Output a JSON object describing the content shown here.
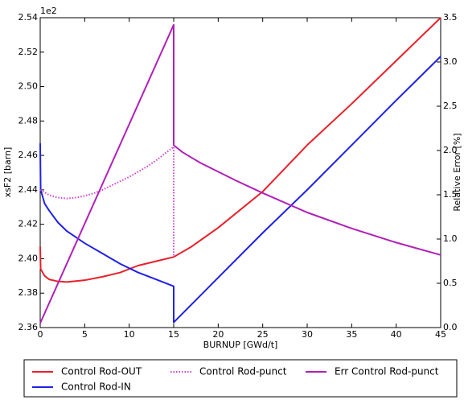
{
  "chart_data": {
    "type": "line",
    "xlabel": "BURNUP [GWd/t]",
    "ylabel": "xsF2 [barn]",
    "y2label": "Relative Error [%]",
    "y_offset_label": "1e2",
    "xlim": [
      0,
      45
    ],
    "xticks": [
      0,
      5,
      10,
      15,
      20,
      25,
      30,
      35,
      40,
      45
    ],
    "ylim": [
      2.36,
      2.54
    ],
    "yticks": [
      2.36,
      2.38,
      {
        "value": 2.4,
        "label": "2.40"
      },
      2.42,
      2.44,
      2.46,
      2.48,
      {
        "value": 2.5,
        "label": "2.50"
      },
      2.52,
      2.54
    ],
    "y2lim": [
      0,
      3.5
    ],
    "y2ticks": [
      {
        "value": 0,
        "label": "0.0"
      },
      0.5,
      {
        "value": 1,
        "label": "1.0"
      },
      1.5,
      {
        "value": 2,
        "label": "2.0"
      },
      2.5,
      {
        "value": 3,
        "label": "3.0"
      },
      3.5
    ],
    "grid": false,
    "legend": "below",
    "series": [
      {
        "name": "Control Rod-OUT",
        "color": "#e8202a",
        "linestyle": "solid",
        "x": [
          0,
          0.05,
          0.5,
          1,
          2,
          3,
          5,
          7,
          9,
          11,
          13,
          15,
          17,
          20,
          25,
          30,
          35,
          40,
          45
        ],
        "values": [
          2.407,
          2.394,
          2.39,
          2.388,
          2.3868,
          2.3865,
          2.3875,
          2.3895,
          2.392,
          2.396,
          2.3985,
          2.401,
          2.407,
          2.418,
          2.439,
          2.466,
          2.49,
          2.515,
          2.54
        ]
      },
      {
        "name": "Control Rod-IN",
        "color": "#2020e8",
        "linestyle": "solid",
        "x": [
          0,
          0.05,
          0.5,
          1,
          2,
          3,
          5,
          7,
          9,
          11,
          13,
          15,
          15,
          20,
          25,
          30,
          35,
          40,
          45
        ],
        "values": [
          2.467,
          2.44,
          2.432,
          2.428,
          2.421,
          2.416,
          2.409,
          2.403,
          2.397,
          2.392,
          2.388,
          2.384,
          2.363,
          2.389,
          2.415,
          2.44,
          2.466,
          2.492,
          2.5175
        ]
      },
      {
        "name": "Control Rod-punct",
        "color": "#d040d0",
        "linestyle": "dotted",
        "x": [
          0,
          1,
          2,
          3,
          4,
          5,
          6,
          7,
          8,
          9,
          10,
          11,
          12,
          13,
          14,
          15,
          15
        ],
        "values": [
          2.44,
          2.437,
          2.4355,
          2.435,
          2.4355,
          2.4365,
          2.438,
          2.44,
          2.4425,
          2.445,
          2.4475,
          2.4505,
          2.4535,
          2.457,
          2.461,
          2.465,
          2.401
        ]
      },
      {
        "name": "Err Control Rod-punct",
        "color": "#b020b8",
        "linestyle": "solid",
        "axis": "y2",
        "x": [
          0,
          15,
          15,
          16,
          17,
          18,
          20,
          22,
          25,
          30,
          35,
          40,
          45
        ],
        "values": [
          0.05,
          3.42,
          2.06,
          1.98,
          1.92,
          1.86,
          1.76,
          1.66,
          1.52,
          1.3,
          1.12,
          0.96,
          0.82
        ]
      }
    ]
  }
}
